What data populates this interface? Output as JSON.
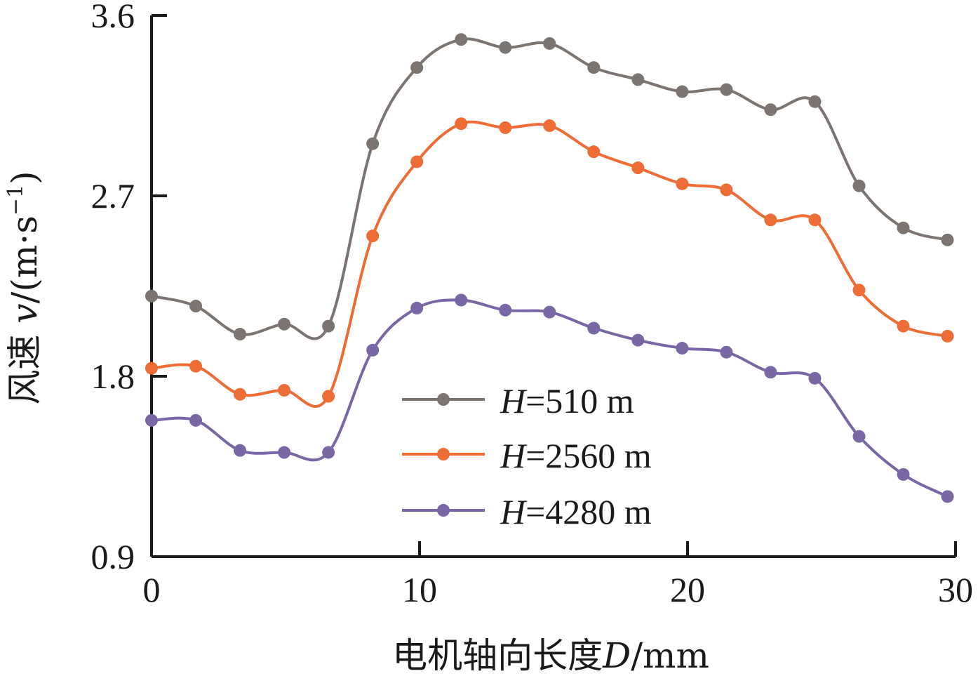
{
  "chart_data": {
    "type": "line",
    "title": "",
    "xlabel": {
      "prefix": "电机轴向长度",
      "var": "D",
      "unit": "/mm"
    },
    "ylabel": {
      "prefix": "风速 ",
      "var": "v",
      "unit_open": "/(m·s",
      "unit_exp": "−1",
      "unit_close": ")"
    },
    "xlim": [
      0,
      30
    ],
    "ylim": [
      0.9,
      3.6
    ],
    "xticks": [
      0,
      10,
      20,
      30
    ],
    "xtick_labels": [
      "0",
      "10",
      "20",
      "30"
    ],
    "yticks": [
      0.9,
      1.8,
      2.7,
      3.6
    ],
    "ytick_labels": [
      "0.9",
      "1.8",
      "2.7",
      "3.6"
    ],
    "x": [
      0,
      1.65,
      3.3,
      4.95,
      6.6,
      8.25,
      9.9,
      11.55,
      13.2,
      14.85,
      16.5,
      18.15,
      19.8,
      21.45,
      23.1,
      24.75,
      26.4,
      28.05,
      29.7
    ],
    "series": [
      {
        "name": "H=510 m",
        "legend_var": "H",
        "legend_value": "=510 m",
        "color": "#7b7470",
        "values": [
          2.2,
          2.15,
          2.01,
          2.06,
          2.05,
          2.96,
          3.34,
          3.48,
          3.44,
          3.46,
          3.34,
          3.28,
          3.22,
          3.23,
          3.13,
          3.17,
          2.75,
          2.54,
          2.48
        ]
      },
      {
        "name": "H=2560 m",
        "legend_var": "H",
        "legend_value": "=2560 m",
        "color": "#ee6c35",
        "values": [
          1.84,
          1.85,
          1.71,
          1.73,
          1.7,
          2.5,
          2.87,
          3.06,
          3.04,
          3.05,
          2.92,
          2.84,
          2.76,
          2.73,
          2.58,
          2.58,
          2.23,
          2.05,
          2.0
        ]
      },
      {
        "name": "H=4280 m",
        "legend_var": "H",
        "legend_value": "=4280 m",
        "color": "#7966a4",
        "values": [
          1.58,
          1.58,
          1.43,
          1.42,
          1.42,
          1.93,
          2.14,
          2.18,
          2.13,
          2.12,
          2.04,
          1.98,
          1.94,
          1.92,
          1.82,
          1.79,
          1.5,
          1.31,
          1.2
        ]
      }
    ]
  }
}
